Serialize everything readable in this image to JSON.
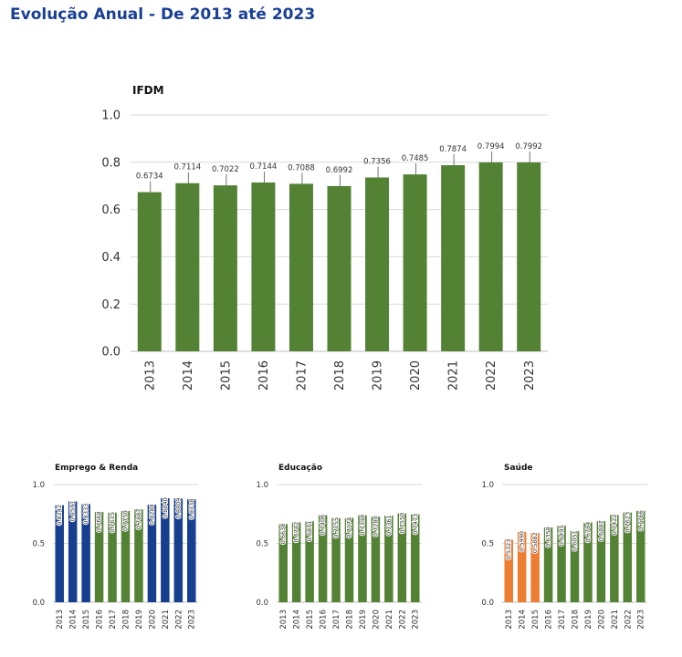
{
  "page": {
    "title": "Evolução Anual - De 2013 até 2023"
  },
  "chart_data": [
    {
      "type": "bar",
      "title": "IFDM",
      "categories": [
        "2013",
        "2014",
        "2015",
        "2016",
        "2017",
        "2018",
        "2019",
        "2020",
        "2021",
        "2022",
        "2023"
      ],
      "values": [
        0.6734,
        0.7114,
        0.7022,
        0.7144,
        0.7088,
        0.6992,
        0.7356,
        0.7485,
        0.7874,
        0.7994,
        0.7992
      ],
      "value_labels": [
        "0.6734",
        "0.7114",
        "0.7022",
        "0.7144",
        "0.7088",
        "0.6992",
        "0.7356",
        "0.7485",
        "0.7874",
        "0.7994",
        "0.7992"
      ],
      "ylim": [
        0,
        1.0
      ],
      "yticks": [
        "0.0",
        "0.2",
        "0.4",
        "0.6",
        "0.8",
        "1.0"
      ],
      "grid": true,
      "colors": [
        "#548235",
        "#548235",
        "#548235",
        "#548235",
        "#548235",
        "#548235",
        "#548235",
        "#548235",
        "#548235",
        "#548235",
        "#548235"
      ]
    },
    {
      "type": "bar",
      "title": "Emprego & Renda",
      "categories": [
        "2013",
        "2014",
        "2015",
        "2016",
        "2017",
        "2018",
        "2019",
        "2020",
        "2021",
        "2022",
        "2023"
      ],
      "values": [
        0.8242,
        0.8571,
        0.8333,
        0.7668,
        0.7615,
        0.775,
        0.7887,
        0.8288,
        0.884,
        0.8809,
        0.8738
      ],
      "value_labels": [
        "0.8242",
        "0.8571",
        "0.8333",
        "0.7668",
        "0.7615",
        "0.7750",
        "0.7887",
        "0.8288",
        "0.8840",
        "0.8809",
        "0.8738"
      ],
      "ylim": [
        0,
        1.0
      ],
      "yticks": [
        "0.0",
        "0.5",
        "1.0"
      ],
      "grid": true,
      "colors": [
        "#173f8f",
        "#173f8f",
        "#173f8f",
        "#548235",
        "#548235",
        "#548235",
        "#548235",
        "#173f8f",
        "#173f8f",
        "#173f8f",
        "#173f8f"
      ]
    },
    {
      "type": "bar",
      "title": "Educação",
      "categories": [
        "2013",
        "2014",
        "2015",
        "2016",
        "2017",
        "2018",
        "2019",
        "2020",
        "2021",
        "2022",
        "2023"
      ],
      "values": [
        0.6638,
        0.6782,
        0.6871,
        0.7406,
        0.7155,
        0.7174,
        0.7398,
        0.728,
        0.7361,
        0.755,
        0.7473
      ],
      "value_labels": [
        "0.6638",
        "0.6782",
        "0.6871",
        "0.7406",
        "0.7155",
        "0.7174",
        "0.7398",
        "0.7280",
        "0.7361",
        "0.7550",
        "0.7473"
      ],
      "ylim": [
        0,
        1.0
      ],
      "yticks": [
        "0.0",
        "0.5",
        "1.0"
      ],
      "grid": true,
      "colors": [
        "#548235",
        "#548235",
        "#548235",
        "#548235",
        "#548235",
        "#548235",
        "#548235",
        "#548235",
        "#548235",
        "#548235",
        "#548235"
      ]
    },
    {
      "type": "bar",
      "title": "Saúde",
      "categories": [
        "2013",
        "2014",
        "2015",
        "2016",
        "2017",
        "2018",
        "2019",
        "2020",
        "2021",
        "2022",
        "2023"
      ],
      "values": [
        0.5323,
        0.599,
        0.5882,
        0.6358,
        0.6495,
        0.6051,
        0.6784,
        0.6887,
        0.7422,
        0.7623,
        0.7766
      ],
      "value_labels": [
        "0.5323",
        "0.5990",
        "0.5882",
        "0.6358",
        "0.6495",
        "0.6051",
        "0.6784",
        "0.6887",
        "0.7422",
        "0.7623",
        "0.7766"
      ],
      "ylim": [
        0,
        1.0
      ],
      "yticks": [
        "0.0",
        "0.5",
        "1.0"
      ],
      "grid": true,
      "colors": [
        "#ed7d31",
        "#ed7d31",
        "#ed7d31",
        "#548235",
        "#548235",
        "#548235",
        "#548235",
        "#548235",
        "#548235",
        "#548235",
        "#548235"
      ]
    }
  ]
}
